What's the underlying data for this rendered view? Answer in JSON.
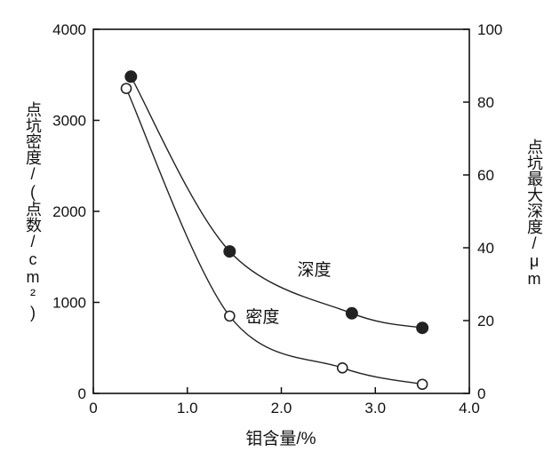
{
  "colors": {
    "axis": "#111111",
    "curve": "#222222",
    "background": "#ffffff"
  },
  "chart_data": {
    "type": "line",
    "title": "",
    "xlabel": "钼含量/%",
    "ylabel_left": "点坑密度/(点数/cm²)",
    "ylabel_right": "点坑最大深度/μm",
    "xlim": [
      0,
      4.0
    ],
    "ylim_left": [
      0,
      4000
    ],
    "ylim_right": [
      0,
      100
    ],
    "grid": false,
    "legend_position": "none",
    "x_ticks": [
      0,
      1.0,
      2.0,
      3.0,
      4.0
    ],
    "x_tick_labels": [
      "0",
      "1.0",
      "2.0",
      "3.0",
      "4.0"
    ],
    "y_ticks_left": [
      0,
      1000,
      2000,
      3000,
      4000
    ],
    "y_tick_labels_left": [
      "0",
      "1000",
      "2000",
      "3000",
      "4000"
    ],
    "y_ticks_right": [
      0,
      20,
      40,
      60,
      80,
      100
    ],
    "y_tick_labels_right": [
      "0",
      "20",
      "40",
      "60",
      "80",
      "100"
    ],
    "series": [
      {
        "name": "深度",
        "axis": "right",
        "marker": "filled-circle",
        "x": [
          0.4,
          1.45,
          2.75,
          3.5
        ],
        "values": [
          87,
          39,
          22,
          18
        ]
      },
      {
        "name": "密度",
        "axis": "left",
        "marker": "open-circle",
        "x": [
          0.35,
          1.45,
          2.65,
          3.5
        ],
        "values": [
          3350,
          850,
          280,
          100
        ]
      }
    ],
    "annotations": [
      {
        "text": "深度",
        "x": 2.35,
        "y_left": 1300
      },
      {
        "text": "密度",
        "x": 1.8,
        "y_left": 780
      }
    ]
  }
}
